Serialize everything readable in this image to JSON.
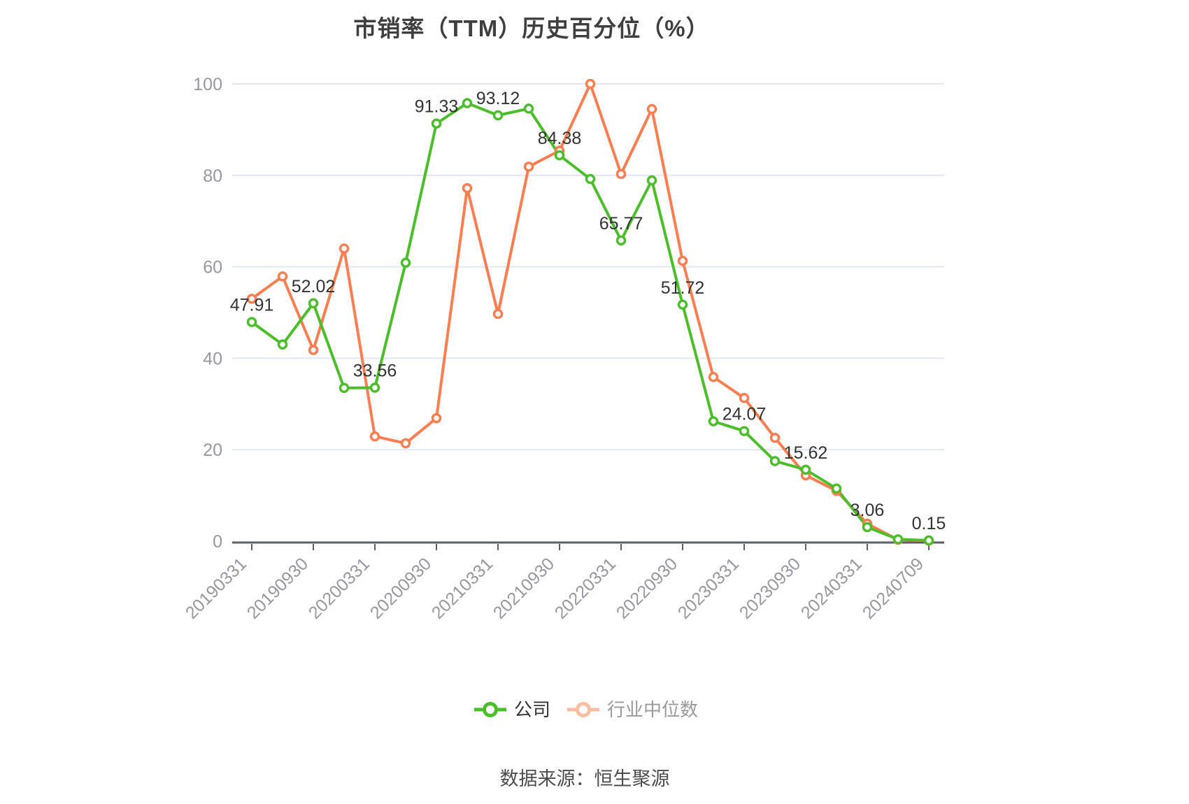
{
  "title": "市销率（TTM）历史百分位（%）",
  "source_note": "数据来源：恒生聚源",
  "legend": {
    "items": [
      {
        "label": "公司",
        "icon_color": "#4DBE2B",
        "text_color": "#333333"
      },
      {
        "label": "行业中位数",
        "icon_color": "#F9BE9F",
        "text_color": "#999999"
      }
    ]
  },
  "chart_data": {
    "type": "line",
    "title": "市销率（TTM）历史百分位（%）",
    "x_tick_labels": [
      "20190331",
      "20190930",
      "20200331",
      "20200930",
      "20210331",
      "20210930",
      "20220331",
      "20220930",
      "20230331",
      "20230930",
      "20240331",
      "20240709"
    ],
    "points_per_tick_interval": 2,
    "n_points": 23,
    "ylim": [
      0,
      100
    ],
    "y_ticks": [
      0,
      20,
      40,
      60,
      80,
      100
    ],
    "grid": true,
    "legend_position": "bottom",
    "series": [
      {
        "name": "公司",
        "color": "#4DBE2B",
        "values": [
          47.91,
          43.0,
          52.02,
          33.5,
          33.56,
          60.9,
          91.33,
          95.8,
          93.12,
          94.6,
          84.38,
          79.2,
          65.77,
          78.9,
          51.72,
          26.2,
          24.07,
          17.5,
          15.62,
          11.5,
          3.06,
          0.4,
          0.15
        ],
        "point_labels": [
          "47.91",
          "52.02",
          "33.56",
          "91.33",
          "93.12",
          "84.38",
          "65.77",
          "51.72",
          "24.07",
          "15.62",
          "3.06",
          "0.15"
        ],
        "labeled_every": 2
      },
      {
        "name": "行业中位数",
        "color": "#FA7E51",
        "values": [
          53.0,
          57.9,
          41.8,
          64.0,
          22.9,
          21.4,
          26.9,
          77.2,
          49.7,
          81.9,
          85.4,
          100.0,
          80.3,
          94.5,
          61.3,
          35.9,
          31.3,
          22.6,
          14.4,
          11.0,
          3.8,
          0.3,
          0.1
        ]
      }
    ],
    "colors": {
      "grid": "#E2E6F1",
      "axis_line": "#5A5E66",
      "axis_label": "#97979F",
      "data_label": "#333333",
      "background": "#FFFFFF"
    }
  }
}
